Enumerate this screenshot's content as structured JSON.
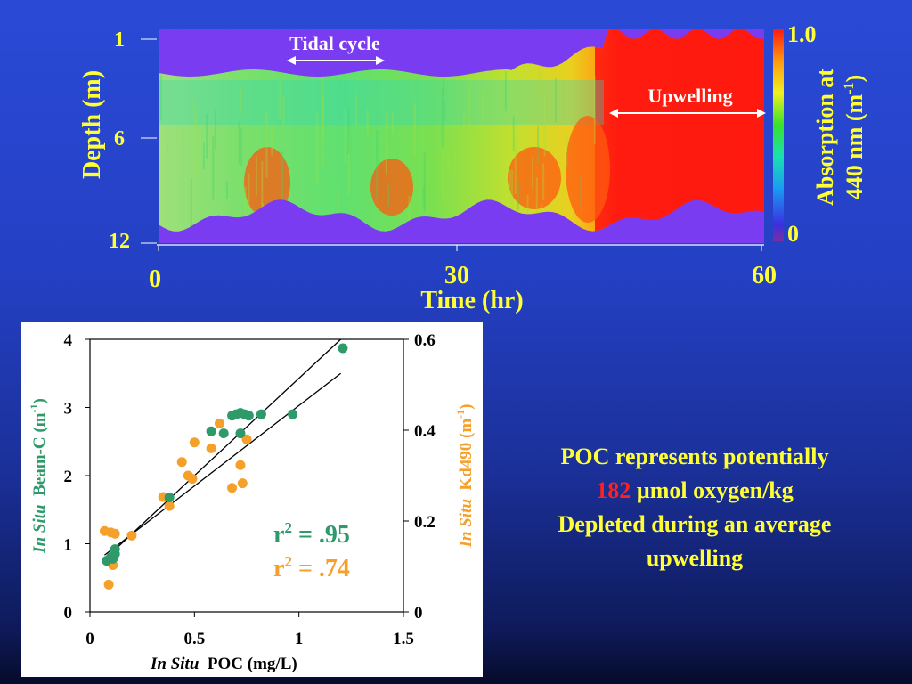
{
  "slide": {
    "colors": {
      "title_yellow": "#ffff33",
      "green_series": "#2e9a6a",
      "orange_series": "#f5a02a",
      "highlight_red": "#ff2020"
    },
    "caption": {
      "line1": "POC represents potentially",
      "line2_number": "182",
      "line2_rest": " µmol oxygen/kg",
      "line3": "Depleted during an average",
      "line4": "upwelling"
    }
  },
  "chart_data": [
    {
      "type": "heatmap",
      "xlabel": "Time (hr)",
      "ylabel": "Depth (m)",
      "x_ticks": [
        "0",
        "30",
        "60"
      ],
      "y_ticks": [
        "1",
        "6",
        "12"
      ],
      "xlim": [
        0,
        60
      ],
      "ylim": [
        12,
        1
      ],
      "colorbar": {
        "label_line1": "Absorption at",
        "label_line2": "440 nm (m",
        "label_sup": "-1",
        "label_end": ")",
        "max_label": "1.0",
        "min_label": "0",
        "range": [
          0,
          1.0
        ]
      },
      "annotations": {
        "tidal": "Tidal cycle",
        "upwelling": "Upwelling"
      },
      "segments": [
        {
          "name": "Tidal cycle",
          "t_start": 13,
          "t_end": 22
        },
        {
          "name": "Upwelling",
          "t_start": 45,
          "t_end": 60
        }
      ]
    },
    {
      "type": "scatter",
      "xlabel_italic": "In Situ",
      "xlabel_rest": "  POC (mg/L)",
      "x_ticks": [
        "0",
        "0.5",
        "1",
        "1.5"
      ],
      "y_left_ticks": [
        "0",
        "1",
        "2",
        "3",
        "4"
      ],
      "y_right_ticks": [
        "0",
        "0.2",
        "0.4",
        "0.6"
      ],
      "ylabel_left_italic": "In Situ",
      "ylabel_left_rest": "  Beam-C (m",
      "ylabel_left_sup": "-1",
      "ylabel_left_end": ")",
      "ylabel_right_italic": "In Situ",
      "ylabel_right_rest": "  Kd490 (m",
      "ylabel_right_sup": "-1",
      "ylabel_right_end": ")",
      "xlim": [
        0,
        1.5
      ],
      "ylim_left": [
        0,
        4
      ],
      "ylim_right": [
        0,
        0.6
      ],
      "r2_green_label": "r",
      "r2_green_value": " = .95",
      "r2_orange_label": "r",
      "r2_orange_value": " = .74",
      "r2_sup": "2",
      "series": [
        {
          "name": "In Situ Beam-C",
          "color": "#2e9a6a",
          "axis": "left",
          "x": [
            0.08,
            0.1,
            0.12,
            0.12,
            0.11,
            0.38,
            0.58,
            0.64,
            0.68,
            0.7,
            0.72,
            0.74,
            0.76,
            0.72,
            0.82,
            0.97,
            1.21
          ],
          "y": [
            0.75,
            0.8,
            0.85,
            0.92,
            0.78,
            1.68,
            2.65,
            2.62,
            2.88,
            2.9,
            2.92,
            2.9,
            2.88,
            2.62,
            2.9,
            2.9,
            3.87
          ],
          "fit": {
            "x": [
              0.08,
              1.2
            ],
            "y": [
              0.8,
              4.0
            ]
          }
        },
        {
          "name": "In Situ Kd490",
          "color": "#f5a02a",
          "axis": "right",
          "x": [
            0.07,
            0.1,
            0.09,
            0.12,
            0.11,
            0.2,
            0.35,
            0.38,
            0.44,
            0.47,
            0.5,
            0.49,
            0.58,
            0.62,
            0.68,
            0.72,
            0.73,
            0.75
          ],
          "y": [
            0.178,
            0.175,
            0.06,
            0.172,
            0.103,
            0.168,
            0.253,
            0.233,
            0.33,
            0.3,
            0.373,
            0.293,
            0.36,
            0.415,
            0.273,
            0.323,
            0.283,
            0.38
          ],
          "fit": {
            "x": [
              0.07,
              1.2
            ],
            "y": [
              0.125,
              0.525
            ]
          }
        }
      ]
    }
  ]
}
